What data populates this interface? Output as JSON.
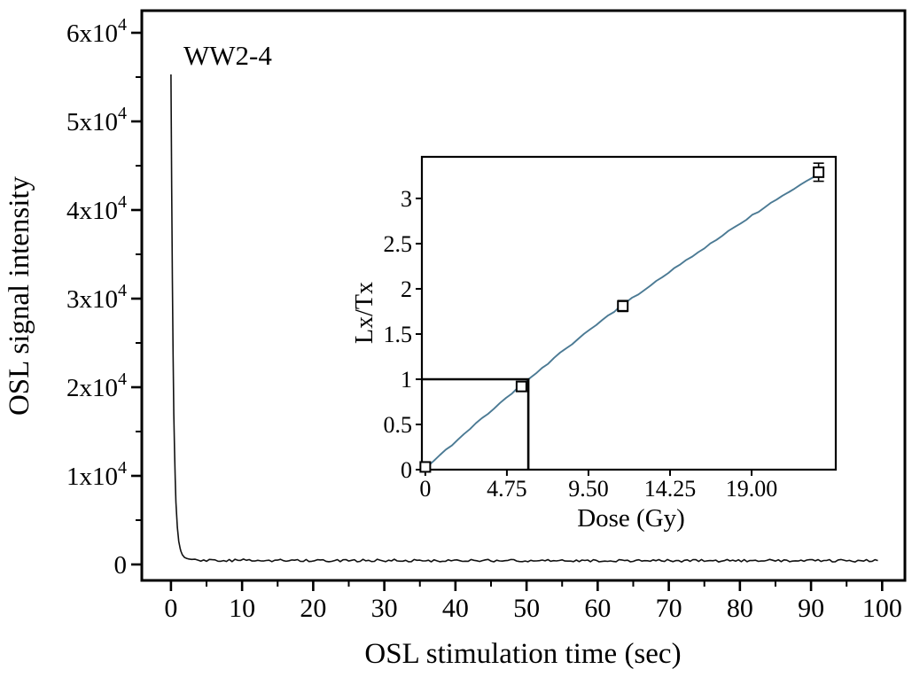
{
  "figure": {
    "sample_label": "WW2-4",
    "background_color": "#ffffff",
    "axis_color": "#000000"
  },
  "chart_data": [
    {
      "id": "osl-decay-curve",
      "type": "line",
      "sample_label": "WW2-4",
      "xlabel": "OSL stimulation time (sec)",
      "ylabel": "OSL signal intensity",
      "xlim": [
        -4.1,
        103.2
      ],
      "ylim": [
        -1800,
        62500
      ],
      "grid": false,
      "x_major_ticks": [
        {
          "value": 0,
          "label": "0"
        },
        {
          "value": 10,
          "label": "10"
        },
        {
          "value": 20,
          "label": "20"
        },
        {
          "value": 30,
          "label": "30"
        },
        {
          "value": 40,
          "label": "40"
        },
        {
          "value": 50,
          "label": "50"
        },
        {
          "value": 60,
          "label": "60"
        },
        {
          "value": 70,
          "label": "70"
        },
        {
          "value": 80,
          "label": "80"
        },
        {
          "value": 90,
          "label": "90"
        },
        {
          "value": 100,
          "label": "100"
        }
      ],
      "x_minor_step": 5,
      "y_major_ticks": [
        {
          "value": 0,
          "label": "0"
        },
        {
          "value": 10000,
          "label": "1x10^4"
        },
        {
          "value": 20000,
          "label": "2x10^4"
        },
        {
          "value": 30000,
          "label": "3x10^4"
        },
        {
          "value": 40000,
          "label": "4x10^4"
        },
        {
          "value": 50000,
          "label": "5x10^4"
        },
        {
          "value": 60000,
          "label": "6x10^4"
        }
      ],
      "y_minor_step": 5000,
      "curve_color": "#111111",
      "peak_intensity": 55300,
      "baseline_intensity": 430,
      "noise_amplitude": 300,
      "curve_points": [
        [
          0,
          55300
        ],
        [
          0.12,
          40000
        ],
        [
          0.25,
          27000
        ],
        [
          0.4,
          17000
        ],
        [
          0.55,
          11000
        ],
        [
          0.7,
          7000
        ],
        [
          0.9,
          4200
        ],
        [
          1.1,
          2600
        ],
        [
          1.35,
          1600
        ],
        [
          1.6,
          1100
        ],
        [
          1.9,
          800
        ],
        [
          2.2,
          680
        ],
        [
          2.6,
          600
        ],
        [
          3.2,
          540
        ],
        [
          4,
          510
        ],
        [
          6,
          480
        ],
        [
          10,
          465
        ],
        [
          20,
          450
        ],
        [
          50,
          435
        ],
        [
          100,
          420
        ]
      ]
    },
    {
      "id": "dose-response-inset",
      "type": "scatter",
      "xlabel": "Dose (Gy)",
      "ylabel": "Lx/Tx",
      "xlim": [
        -0.2,
        23.9
      ],
      "ylim": [
        0,
        3.46
      ],
      "grid": false,
      "x_major_ticks": [
        {
          "value": 0,
          "label": "0"
        },
        {
          "value": 4.75,
          "label": "4.75"
        },
        {
          "value": 9.5,
          "label": "9.50"
        },
        {
          "value": 14.25,
          "label": "14.25"
        },
        {
          "value": 19,
          "label": "19.00"
        }
      ],
      "y_major_ticks": [
        {
          "value": 0,
          "label": "0"
        },
        {
          "value": 0.5,
          "label": "0.5"
        },
        {
          "value": 1,
          "label": "1"
        },
        {
          "value": 1.5,
          "label": "1.5"
        },
        {
          "value": 2,
          "label": "2"
        },
        {
          "value": 2.5,
          "label": "2.5"
        },
        {
          "value": 3,
          "label": "3"
        }
      ],
      "line_color": "#4b7a94",
      "marker": "open-square",
      "data_points": [
        {
          "dose": 0,
          "lx_tx": 0.03,
          "error": 0.04
        },
        {
          "dose": 5.6,
          "lx_tx": 0.92,
          "error": 0.05
        },
        {
          "dose": 11.5,
          "lx_tx": 1.81,
          "error": 0.06
        },
        {
          "dose": 22.9,
          "lx_tx": 3.29,
          "error": 0.1
        }
      ],
      "fit_points": [
        [
          0.15,
          0.04
        ],
        [
          1,
          0.18
        ],
        [
          2,
          0.35
        ],
        [
          3,
          0.52
        ],
        [
          4,
          0.68
        ],
        [
          5,
          0.84
        ],
        [
          6,
          1.0
        ],
        [
          7,
          1.15
        ],
        [
          8,
          1.31
        ],
        [
          9,
          1.46
        ],
        [
          10,
          1.61
        ],
        [
          11,
          1.75
        ],
        [
          12,
          1.89
        ],
        [
          13,
          2.02
        ],
        [
          14,
          2.16
        ],
        [
          15,
          2.29
        ],
        [
          16,
          2.42
        ],
        [
          17,
          2.55
        ],
        [
          18,
          2.68
        ],
        [
          19,
          2.81
        ],
        [
          20,
          2.93
        ],
        [
          21,
          3.05
        ],
        [
          22,
          3.17
        ],
        [
          22.9,
          3.28
        ]
      ],
      "equivalent_dose": {
        "lx_tx": 1.0,
        "dose_gy": 6.0
      }
    }
  ]
}
